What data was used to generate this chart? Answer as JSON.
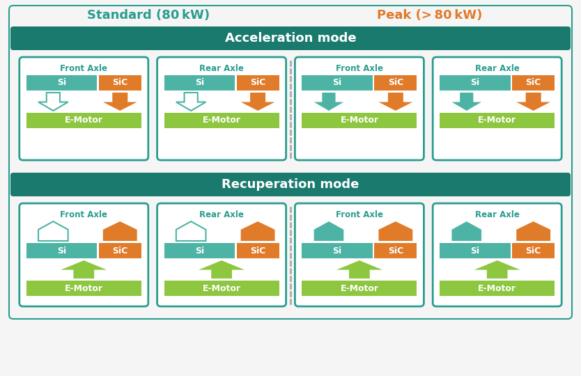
{
  "title_standard": "Standard (80 kW)",
  "title_peak": "Peak (> 80 kW)",
  "title_standard_color": "#2a9d8f",
  "title_peak_color": "#e07b2a",
  "header_accel": "Acceleration mode",
  "header_recup": "Recuperation mode",
  "header_bg_color": "#1a7a6e",
  "header_text_color": "#ffffff",
  "card_border_color": "#2a9d8f",
  "card_bg_color": "#ffffff",
  "axle_label_color": "#2a9d8f",
  "si_color": "#4db3a4",
  "sic_color": "#e07b2a",
  "motor_color": "#8dc63f",
  "bg_color": "#f5f5f5",
  "dashed_line_color": "#aaaaaa",
  "outer_border_color": "#2a9d8f",
  "fig_w": 8.34,
  "fig_h": 5.4,
  "dpi": 100
}
